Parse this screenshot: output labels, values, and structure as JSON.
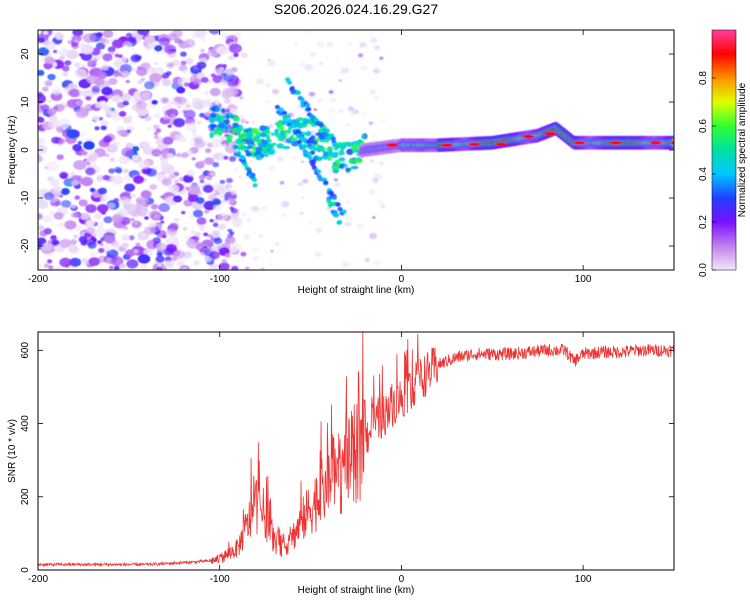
{
  "title": "S206.2026.024.16.29.G27",
  "chart_data": [
    {
      "type": "heatmap",
      "xlabel": "Height of straight line (km)",
      "ylabel": "Frequency (Hz)",
      "xlim": [
        -200,
        150
      ],
      "ylim": [
        -25,
        25
      ],
      "xticks": [
        -200,
        -100,
        0,
        100
      ],
      "yticks": [
        -20,
        -10,
        0,
        10,
        20
      ],
      "colorbar": {
        "label": "Normalized spectral amplitude",
        "range": [
          0,
          1
        ],
        "ticks": [
          "0.0",
          "0.2",
          "0.4",
          "0.6",
          "0.8"
        ],
        "colors": [
          "#f0e8f8",
          "#c080f0",
          "#7a10ff",
          "#2040ff",
          "#00c8ff",
          "#00e0a0",
          "#30ff30",
          "#e0ff00",
          "#ff9000",
          "#ff0000",
          "#ff40a0"
        ]
      },
      "ridge": {
        "description_points_x": [
          -100,
          -80,
          -60,
          -45,
          -35,
          -20,
          0,
          20,
          50,
          75,
          85,
          95,
          110,
          150
        ],
        "frequency_hz": [
          6,
          1,
          4,
          3,
          -2,
          0,
          1,
          1,
          1.5,
          3,
          4.5,
          1.5,
          1.5,
          1.5
        ]
      }
    },
    {
      "type": "line",
      "xlabel": "Height of straight line (km)",
      "ylabel": "SNR (10 * v/v)",
      "xlim": [
        -200,
        150
      ],
      "ylim": [
        0,
        650
      ],
      "xticks": [
        -200,
        -100,
        0,
        100
      ],
      "yticks": [
        0,
        200,
        400,
        600
      ],
      "color": "#ee3333",
      "series": [
        {
          "name": "SNR",
          "x": [
            -200,
            -180,
            -160,
            -140,
            -120,
            -105,
            -100,
            -90,
            -85,
            -80,
            -75,
            -70,
            -65,
            -60,
            -55,
            -50,
            -45,
            -40,
            -35,
            -30,
            -25,
            -20,
            -15,
            -10,
            -5,
            0,
            10,
            20,
            30,
            40,
            50,
            60,
            70,
            80,
            90,
            95,
            100,
            110,
            120,
            130,
            140,
            150
          ],
          "y": [
            15,
            15,
            15,
            15,
            20,
            25,
            30,
            60,
            120,
            180,
            150,
            80,
            60,
            90,
            130,
            170,
            200,
            240,
            260,
            280,
            320,
            360,
            400,
            420,
            450,
            470,
            520,
            560,
            580,
            590,
            590,
            590,
            595,
            600,
            600,
            570,
            590,
            595,
            595,
            600,
            600,
            600
          ]
        }
      ]
    }
  ]
}
